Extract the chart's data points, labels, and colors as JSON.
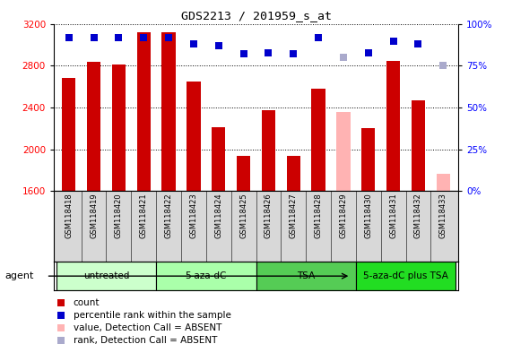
{
  "title": "GDS2213 / 201959_s_at",
  "samples": [
    "GSM118418",
    "GSM118419",
    "GSM118420",
    "GSM118421",
    "GSM118422",
    "GSM118423",
    "GSM118424",
    "GSM118425",
    "GSM118426",
    "GSM118427",
    "GSM118428",
    "GSM118429",
    "GSM118430",
    "GSM118431",
    "GSM118432",
    "GSM118433"
  ],
  "bar_values": [
    2680,
    2840,
    2810,
    3120,
    3120,
    2650,
    2210,
    1940,
    2370,
    1940,
    2580,
    2360,
    2200,
    2850,
    2470,
    1760
  ],
  "bar_absent": [
    false,
    false,
    false,
    false,
    false,
    false,
    false,
    false,
    false,
    false,
    false,
    true,
    false,
    false,
    false,
    true
  ],
  "rank_values": [
    92,
    92,
    92,
    92,
    92,
    88,
    87,
    82,
    83,
    82,
    92,
    80,
    83,
    90,
    88,
    75
  ],
  "rank_absent": [
    false,
    false,
    false,
    false,
    false,
    false,
    false,
    false,
    false,
    false,
    false,
    true,
    false,
    false,
    false,
    true
  ],
  "bar_color_present": "#cc0000",
  "bar_color_absent": "#ffb3b3",
  "rank_color_present": "#0000cc",
  "rank_color_absent": "#aaaacc",
  "ylim_left": [
    1600,
    3200
  ],
  "ylim_right": [
    0,
    100
  ],
  "yticks_left": [
    1600,
    2000,
    2400,
    2800,
    3200
  ],
  "yticks_right": [
    0,
    25,
    50,
    75,
    100
  ],
  "group_defs": [
    {
      "label": "untreated",
      "start": 0,
      "end": 3,
      "color": "#ccffcc"
    },
    {
      "label": "5-aza-dC",
      "start": 4,
      "end": 7,
      "color": "#aaffaa"
    },
    {
      "label": "TSA",
      "start": 8,
      "end": 11,
      "color": "#55cc55"
    },
    {
      "label": "5-aza-dC plus TSA",
      "start": 12,
      "end": 15,
      "color": "#22dd22"
    }
  ],
  "bar_width": 0.55,
  "rank_marker_size": 6
}
